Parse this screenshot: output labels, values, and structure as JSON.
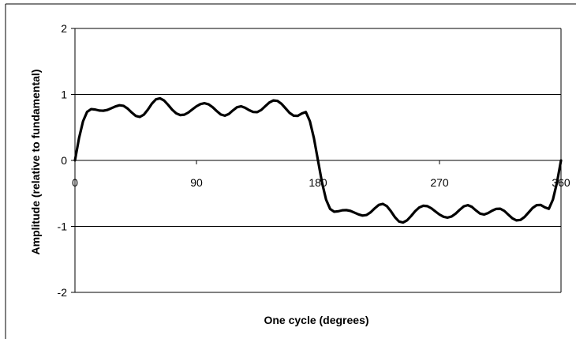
{
  "chart_data": {
    "type": "line",
    "title": "",
    "xlabel": "One cycle (degrees)",
    "ylabel": "Amplitude (relative to fundamental)",
    "xlim": [
      0,
      360
    ],
    "ylim": [
      -2,
      2
    ],
    "x_ticks": [
      0,
      90,
      180,
      270,
      360
    ],
    "y_ticks": [
      2,
      1,
      0,
      -1,
      -2
    ],
    "grid": {
      "horizontal": true,
      "vertical": false
    },
    "legend": "none",
    "series": [
      {
        "color": "#000000",
        "x": [
          0,
          3,
          6,
          9,
          12,
          15,
          18,
          21,
          24,
          27,
          30,
          33,
          36,
          39,
          42,
          45,
          48,
          51,
          54,
          57,
          60,
          63,
          66,
          69,
          72,
          75,
          78,
          81,
          84,
          87,
          90,
          93,
          96,
          99,
          102,
          105,
          108,
          111,
          114,
          117,
          120,
          123,
          126,
          129,
          132,
          135,
          138,
          141,
          144,
          147,
          150,
          153,
          156,
          159,
          162,
          165,
          168,
          171,
          174,
          177,
          180,
          183,
          186,
          189,
          192,
          195,
          198,
          201,
          204,
          207,
          210,
          213,
          216,
          219,
          222,
          225,
          228,
          231,
          234,
          237,
          240,
          243,
          246,
          249,
          252,
          255,
          258,
          261,
          264,
          267,
          270,
          273,
          276,
          279,
          282,
          285,
          288,
          291,
          294,
          297,
          300,
          303,
          306,
          309,
          312,
          315,
          318,
          321,
          324,
          327,
          330,
          333,
          336,
          339,
          342,
          345,
          348,
          351,
          354,
          357,
          360
        ],
        "y": [
          0,
          0.337,
          0.594,
          0.736,
          0.778,
          0.771,
          0.756,
          0.753,
          0.765,
          0.791,
          0.818,
          0.836,
          0.827,
          0.786,
          0.727,
          0.675,
          0.659,
          0.693,
          0.77,
          0.861,
          0.926,
          0.941,
          0.908,
          0.842,
          0.769,
          0.713,
          0.687,
          0.693,
          0.726,
          0.774,
          0.82,
          0.854,
          0.867,
          0.85,
          0.806,
          0.748,
          0.696,
          0.678,
          0.704,
          0.758,
          0.806,
          0.82,
          0.798,
          0.762,
          0.734,
          0.732,
          0.765,
          0.822,
          0.878,
          0.909,
          0.902,
          0.857,
          0.789,
          0.72,
          0.678,
          0.675,
          0.711,
          0.734,
          0.594,
          0.337,
          0,
          -0.337,
          -0.594,
          -0.736,
          -0.778,
          -0.771,
          -0.756,
          -0.753,
          -0.765,
          -0.791,
          -0.818,
          -0.836,
          -0.827,
          -0.786,
          -0.727,
          -0.675,
          -0.659,
          -0.693,
          -0.77,
          -0.861,
          -0.926,
          -0.941,
          -0.908,
          -0.842,
          -0.769,
          -0.713,
          -0.687,
          -0.693,
          -0.726,
          -0.774,
          -0.82,
          -0.854,
          -0.867,
          -0.85,
          -0.806,
          -0.748,
          -0.696,
          -0.678,
          -0.704,
          -0.758,
          -0.806,
          -0.82,
          -0.798,
          -0.762,
          -0.734,
          -0.732,
          -0.765,
          -0.822,
          -0.878,
          -0.909,
          -0.902,
          -0.857,
          -0.789,
          -0.72,
          -0.678,
          -0.675,
          -0.711,
          -0.734,
          -0.594,
          -0.337,
          0
        ]
      }
    ]
  }
}
